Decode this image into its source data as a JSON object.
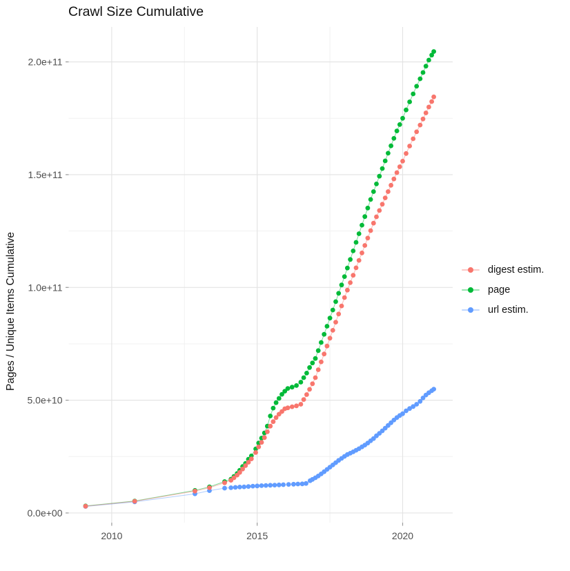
{
  "chart_data": {
    "type": "scatter",
    "title": "Crawl Size Cumulative",
    "xlabel": "",
    "ylabel": "Pages / Unique Items Cumulative",
    "legend_position": "right",
    "grid": true,
    "xlim": [
      2008.52,
      2021.72
    ],
    "ylim_billions": [
      -4.3,
      215.5
    ],
    "x_ticks": {
      "values": [
        2010,
        2015,
        2020
      ],
      "labels": [
        "2010",
        "2015",
        "2020"
      ],
      "minor": [
        2012.5,
        2017.5
      ]
    },
    "y_ticks": {
      "values": [
        0,
        50,
        100,
        150,
        200
      ],
      "labels": [
        "0.0e+00",
        "5.0e+10",
        "1.0e+11",
        "1.5e+11",
        "2.0e+11"
      ],
      "minor": [
        25,
        75,
        125,
        175
      ]
    },
    "value_note": "point values are in billions (1e9) of pages / unique items, x is decimal year",
    "draw_order": [
      "page",
      "url estim.",
      "digest estim."
    ],
    "series": [
      {
        "name": "digest estim.",
        "color": "#F8766D",
        "points": [
          [
            2009.1,
            3.0
          ],
          [
            2010.79,
            5.2
          ],
          [
            2012.86,
            9.7
          ],
          [
            2013.36,
            11.2
          ],
          [
            2013.88,
            13.4
          ],
          [
            2014.1,
            14.5
          ],
          [
            2014.2,
            15.6
          ],
          [
            2014.31,
            16.8
          ],
          [
            2014.4,
            18.0
          ],
          [
            2014.5,
            19.5
          ],
          [
            2014.6,
            21.0
          ],
          [
            2014.7,
            22.5
          ],
          [
            2014.8,
            24.0
          ],
          [
            2014.95,
            26.8
          ],
          [
            2015.05,
            29.3
          ],
          [
            2015.15,
            31.3
          ],
          [
            2015.25,
            33.4
          ],
          [
            2015.35,
            36.0
          ],
          [
            2015.45,
            38.5
          ],
          [
            2015.55,
            40.5
          ],
          [
            2015.65,
            42.3
          ],
          [
            2015.75,
            43.8
          ],
          [
            2015.85,
            45.0
          ],
          [
            2015.95,
            46.2
          ],
          [
            2016.05,
            46.6
          ],
          [
            2016.2,
            47.1
          ],
          [
            2016.35,
            47.5
          ],
          [
            2016.5,
            48.2
          ],
          [
            2016.6,
            50.3
          ],
          [
            2016.7,
            52.5
          ],
          [
            2016.8,
            54.8
          ],
          [
            2016.9,
            57.3
          ],
          [
            2017.0,
            60.0
          ],
          [
            2017.1,
            63.5
          ],
          [
            2017.2,
            67.0
          ],
          [
            2017.3,
            70.5
          ],
          [
            2017.4,
            74.0
          ],
          [
            2017.5,
            77.5
          ],
          [
            2017.6,
            81.0
          ],
          [
            2017.7,
            84.6
          ],
          [
            2017.8,
            88.2
          ],
          [
            2017.9,
            91.8
          ],
          [
            2018.0,
            95.5
          ],
          [
            2018.1,
            98.8
          ],
          [
            2018.2,
            102.1
          ],
          [
            2018.3,
            105.4
          ],
          [
            2018.4,
            108.7
          ],
          [
            2018.5,
            112.0
          ],
          [
            2018.6,
            115.3
          ],
          [
            2018.7,
            118.6
          ],
          [
            2018.8,
            121.9
          ],
          [
            2018.9,
            125.2
          ],
          [
            2019.0,
            128.5
          ],
          [
            2019.1,
            131.3
          ],
          [
            2019.2,
            134.1
          ],
          [
            2019.3,
            136.9
          ],
          [
            2019.4,
            139.7
          ],
          [
            2019.5,
            142.5
          ],
          [
            2019.6,
            145.3
          ],
          [
            2019.7,
            148.1
          ],
          [
            2019.8,
            150.9
          ],
          [
            2019.9,
            153.5
          ],
          [
            2020.0,
            156.0
          ],
          [
            2020.12,
            159.4
          ],
          [
            2020.24,
            162.7
          ],
          [
            2020.36,
            165.9
          ],
          [
            2020.48,
            169.0
          ],
          [
            2020.6,
            172.0
          ],
          [
            2020.7,
            174.7
          ],
          [
            2020.8,
            177.4
          ],
          [
            2020.9,
            180.0
          ],
          [
            2021.0,
            182.4
          ],
          [
            2021.07,
            184.5
          ]
        ]
      },
      {
        "name": "page",
        "color": "#00BA38",
        "points": [
          [
            2009.1,
            3.1
          ],
          [
            2010.79,
            5.3
          ],
          [
            2012.86,
            10.0
          ],
          [
            2013.36,
            11.6
          ],
          [
            2013.88,
            13.9
          ],
          [
            2014.1,
            15.0
          ],
          [
            2014.2,
            16.2
          ],
          [
            2014.31,
            17.5
          ],
          [
            2014.4,
            18.9
          ],
          [
            2014.5,
            20.6
          ],
          [
            2014.6,
            22.0
          ],
          [
            2014.7,
            23.8
          ],
          [
            2014.8,
            25.3
          ],
          [
            2014.95,
            28.4
          ],
          [
            2015.05,
            31.0
          ],
          [
            2015.15,
            33.2
          ],
          [
            2015.25,
            35.5
          ],
          [
            2015.35,
            38.5
          ],
          [
            2015.45,
            43.0
          ],
          [
            2015.55,
            46.5
          ],
          [
            2015.65,
            48.9
          ],
          [
            2015.75,
            50.8
          ],
          [
            2015.85,
            52.6
          ],
          [
            2015.95,
            54.0
          ],
          [
            2016.05,
            55.2
          ],
          [
            2016.2,
            55.8
          ],
          [
            2016.35,
            56.5
          ],
          [
            2016.5,
            58.0
          ],
          [
            2016.6,
            60.0
          ],
          [
            2016.7,
            62.0
          ],
          [
            2016.8,
            64.5
          ],
          [
            2016.9,
            66.5
          ],
          [
            2017.0,
            68.5
          ],
          [
            2017.1,
            72.0
          ],
          [
            2017.2,
            75.6
          ],
          [
            2017.3,
            79.2
          ],
          [
            2017.4,
            82.8
          ],
          [
            2017.5,
            86.4
          ],
          [
            2017.6,
            90.0
          ],
          [
            2017.7,
            93.7
          ],
          [
            2017.8,
            97.4
          ],
          [
            2017.9,
            101.1
          ],
          [
            2018.0,
            104.8
          ],
          [
            2018.1,
            108.6
          ],
          [
            2018.2,
            112.4
          ],
          [
            2018.3,
            116.2
          ],
          [
            2018.4,
            120.0
          ],
          [
            2018.5,
            123.8
          ],
          [
            2018.6,
            127.6
          ],
          [
            2018.7,
            131.4
          ],
          [
            2018.8,
            135.2
          ],
          [
            2018.9,
            139.0
          ],
          [
            2019.0,
            142.5
          ],
          [
            2019.1,
            145.9
          ],
          [
            2019.2,
            149.3
          ],
          [
            2019.3,
            152.7
          ],
          [
            2019.4,
            156.1
          ],
          [
            2019.5,
            159.5
          ],
          [
            2019.6,
            162.8
          ],
          [
            2019.7,
            166.1
          ],
          [
            2019.8,
            169.4
          ],
          [
            2019.9,
            172.2
          ],
          [
            2020.0,
            175.0
          ],
          [
            2020.12,
            178.7
          ],
          [
            2020.24,
            182.3
          ],
          [
            2020.36,
            185.8
          ],
          [
            2020.48,
            189.2
          ],
          [
            2020.6,
            192.5
          ],
          [
            2020.7,
            195.3
          ],
          [
            2020.8,
            198.1
          ],
          [
            2020.9,
            200.8
          ],
          [
            2021.0,
            203.0
          ],
          [
            2021.07,
            204.6
          ]
        ]
      },
      {
        "name": "url estim.",
        "color": "#619CFF",
        "points": [
          [
            2009.1,
            2.9
          ],
          [
            2010.79,
            4.9
          ],
          [
            2012.86,
            8.5
          ],
          [
            2013.36,
            9.9
          ],
          [
            2013.88,
            11.0
          ],
          [
            2014.1,
            11.2
          ],
          [
            2014.25,
            11.35
          ],
          [
            2014.4,
            11.5
          ],
          [
            2014.55,
            11.6
          ],
          [
            2014.7,
            11.75
          ],
          [
            2014.85,
            11.9
          ],
          [
            2015.0,
            12.0
          ],
          [
            2015.15,
            12.1
          ],
          [
            2015.3,
            12.2
          ],
          [
            2015.45,
            12.3
          ],
          [
            2015.6,
            12.35
          ],
          [
            2015.75,
            12.45
          ],
          [
            2015.9,
            12.55
          ],
          [
            2016.08,
            12.65
          ],
          [
            2016.25,
            12.75
          ],
          [
            2016.4,
            12.85
          ],
          [
            2016.55,
            12.9
          ],
          [
            2016.68,
            13.1
          ],
          [
            2016.82,
            14.3
          ],
          [
            2016.9,
            14.9
          ],
          [
            2017.0,
            15.6
          ],
          [
            2017.1,
            16.4
          ],
          [
            2017.2,
            17.3
          ],
          [
            2017.3,
            18.3
          ],
          [
            2017.4,
            19.3
          ],
          [
            2017.5,
            20.3
          ],
          [
            2017.6,
            21.3
          ],
          [
            2017.7,
            22.3
          ],
          [
            2017.8,
            23.3
          ],
          [
            2017.9,
            24.2
          ],
          [
            2018.0,
            25.1
          ],
          [
            2018.1,
            25.9
          ],
          [
            2018.2,
            26.5
          ],
          [
            2018.3,
            27.1
          ],
          [
            2018.4,
            27.8
          ],
          [
            2018.5,
            28.5
          ],
          [
            2018.6,
            29.3
          ],
          [
            2018.7,
            30.1
          ],
          [
            2018.8,
            31.0
          ],
          [
            2018.9,
            32.0
          ],
          [
            2019.0,
            33.0
          ],
          [
            2019.1,
            34.2
          ],
          [
            2019.2,
            35.3
          ],
          [
            2019.3,
            36.4
          ],
          [
            2019.4,
            37.6
          ],
          [
            2019.5,
            38.8
          ],
          [
            2019.6,
            40.0
          ],
          [
            2019.7,
            41.2
          ],
          [
            2019.8,
            42.3
          ],
          [
            2019.9,
            43.2
          ],
          [
            2020.0,
            44.0
          ],
          [
            2020.12,
            45.3
          ],
          [
            2020.24,
            46.3
          ],
          [
            2020.36,
            47.2
          ],
          [
            2020.48,
            48.2
          ],
          [
            2020.6,
            49.5
          ],
          [
            2020.7,
            51.0
          ],
          [
            2020.8,
            52.3
          ],
          [
            2020.9,
            53.3
          ],
          [
            2021.0,
            54.2
          ],
          [
            2021.07,
            54.9
          ]
        ]
      }
    ],
    "style": {
      "grid_major_color": "#e4e4e4",
      "grid_minor_color": "#f1f1f1",
      "tick_color": "#9a9a9a",
      "tick_label_color": "#4d4d4d",
      "point_radius": 3.4,
      "line_opacity": 0.5
    }
  }
}
